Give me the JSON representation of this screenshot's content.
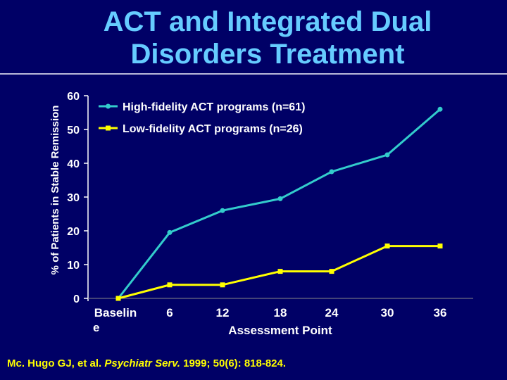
{
  "page": {
    "title_line1": "ACT and Integrated Dual",
    "title_line2": "Disorders Treatment",
    "citation": {
      "authors": "Mc. Hugo GJ, et al.",
      "journal": "Psychiatr Serv.",
      "details": "1999; 50(6): 818-824."
    }
  },
  "colors": {
    "background": "#000066",
    "title": "#66ccff",
    "high_fidelity": "#33cccc",
    "low_fidelity": "#ffff00",
    "citation": "#ffff00"
  },
  "chart_data": {
    "type": "line",
    "title": "",
    "ylabel": "% of Patients in Stable Remission",
    "xlabel": "Assessment Point",
    "categories": [
      "Baseline",
      "6",
      "12",
      "18",
      "24",
      "30",
      "36"
    ],
    "category_label_lines": [
      [
        "Baselin",
        "e"
      ],
      [
        "6"
      ],
      [
        "12"
      ],
      [
        "18"
      ],
      [
        "24"
      ],
      [
        "30"
      ],
      [
        "36"
      ]
    ],
    "ylim": [
      0,
      60
    ],
    "yticks": [
      0,
      10,
      20,
      30,
      40,
      50,
      60
    ],
    "grid": false,
    "legend_position": "top-left",
    "series": [
      {
        "name": "High-fidelity ACT programs (n=61)",
        "color": "#33cccc",
        "values": [
          0,
          19.5,
          26,
          29.5,
          37.5,
          42.5,
          56
        ]
      },
      {
        "name": "Low-fidelity ACT programs (n=26)",
        "color": "#ffff00",
        "values": [
          0,
          4,
          4,
          8,
          8,
          15.5,
          15.5
        ]
      }
    ]
  }
}
